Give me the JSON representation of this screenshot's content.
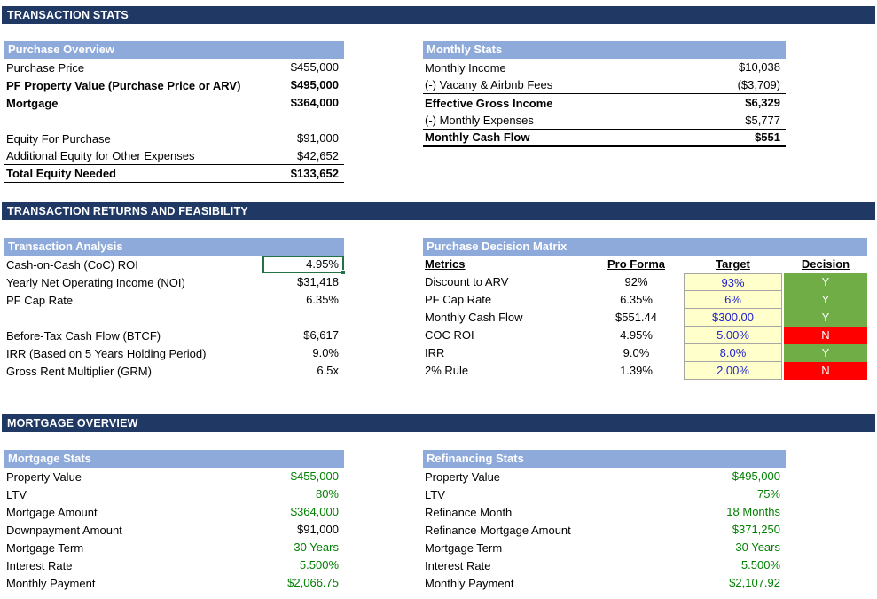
{
  "banners": {
    "stats": "TRANSACTION STATS",
    "returns": "TRANSACTION RETURNS AND FEASIBILITY",
    "mortgage": "MORTGAGE OVERVIEW"
  },
  "colors": {
    "banner_bg": "#1F3864",
    "band_bg": "#8EAADB",
    "target_cell_bg": "#FFFFCC",
    "target_text": "#2222CC",
    "decision_yes": "#70AD47",
    "decision_no": "#FF0000",
    "linked_value_text": "#008000",
    "active_cell_border": "#217346"
  },
  "purchase_overview": {
    "title": "Purchase Overview",
    "rows": [
      {
        "label": "Purchase Price",
        "value": "$455,000"
      },
      {
        "label": "PF Property Value (Purchase Price or ARV)",
        "value": "$495,000",
        "bold": true
      },
      {
        "label": "Mortgage",
        "value": "$364,000",
        "bold": true
      },
      {
        "blank": true
      },
      {
        "label": "Equity For Purchase",
        "value": "$91,000"
      },
      {
        "label": "Additional Equity for Other Expenses",
        "value": "$42,652",
        "border": "single"
      },
      {
        "label": "Total Equity Needed",
        "value": "$133,652",
        "bold": true,
        "border": "single"
      }
    ]
  },
  "monthly_stats": {
    "title": "Monthly Stats",
    "rows": [
      {
        "label": "Monthly Income",
        "value": "$10,038"
      },
      {
        "label": "(-) Vacany & Airbnb Fees",
        "value": "($3,709)",
        "border": "single"
      },
      {
        "label": "Effective Gross Income",
        "value": "$6,329",
        "bold": true
      },
      {
        "label": "(-) Monthly Expenses",
        "value": "$5,777",
        "border": "single"
      },
      {
        "label": "Monthly Cash Flow",
        "value": "$551",
        "bold": true,
        "border": "double"
      }
    ]
  },
  "transaction_analysis": {
    "title": "Transaction Analysis",
    "rows": [
      {
        "label": "Cash-on-Cash (CoC) ROI",
        "value": "4.95%",
        "active": true
      },
      {
        "label": "Yearly Net Operating Income (NOI)",
        "value": "$31,418"
      },
      {
        "label": "PF Cap Rate",
        "value": "6.35%"
      },
      {
        "blank": true
      },
      {
        "label": "Before-Tax Cash Flow (BTCF)",
        "value": "$6,617"
      },
      {
        "label": "IRR (Based on 5 Years Holding Period)",
        "value": "9.0%"
      },
      {
        "label": "Gross Rent Multiplier (GRM)",
        "value": "6.5x"
      }
    ]
  },
  "decision_matrix": {
    "title": "Purchase Decision Matrix",
    "headers": {
      "metrics": "Metrics",
      "pro_forma": "Pro Forma",
      "target": "Target",
      "decision": "Decision"
    },
    "rows": [
      {
        "metric": "Discount to ARV",
        "pro_forma": "92%",
        "target": "93%",
        "decision": "Y",
        "status": "green"
      },
      {
        "metric": "PF Cap Rate",
        "pro_forma": "6.35%",
        "target": "6%",
        "decision": "Y",
        "status": "green"
      },
      {
        "metric": "Monthly Cash Flow",
        "pro_forma": "$551.44",
        "target": "$300.00",
        "decision": "Y",
        "status": "green"
      },
      {
        "metric": "COC ROI",
        "pro_forma": "4.95%",
        "target": "5.00%",
        "decision": "N",
        "status": "red"
      },
      {
        "metric": "IRR",
        "pro_forma": "9.0%",
        "target": "8.0%",
        "decision": "Y",
        "status": "green"
      },
      {
        "metric": "2% Rule",
        "pro_forma": "1.39%",
        "target": "2.00%",
        "decision": "N",
        "status": "red"
      }
    ]
  },
  "mortgage_stats": {
    "title": "Mortgage Stats",
    "rows": [
      {
        "label": "Property Value",
        "value": "$455,000",
        "value_color": "green"
      },
      {
        "label": "LTV",
        "value": "80%",
        "value_color": "green"
      },
      {
        "label": "Mortgage Amount",
        "value": "$364,000",
        "value_color": "green"
      },
      {
        "label": "Downpayment Amount",
        "value": "$91,000"
      },
      {
        "label": "Mortgage Term",
        "value": "30 Years",
        "value_color": "green"
      },
      {
        "label": "Interest Rate",
        "value": "5.500%",
        "value_color": "green"
      },
      {
        "label": "Monthly Payment",
        "value": "$2,066.75",
        "value_color": "green"
      }
    ]
  },
  "refinancing_stats": {
    "title": "Refinancing Stats",
    "rows": [
      {
        "label": "Property Value",
        "value": "$495,000",
        "value_color": "green"
      },
      {
        "label": "LTV",
        "value": "75%",
        "value_color": "green"
      },
      {
        "label": "Refinance Month",
        "value": "18 Months",
        "value_color": "green"
      },
      {
        "label": "Refinance Mortgage Amount",
        "value": "$371,250",
        "value_color": "green"
      },
      {
        "label": "Mortgage Term",
        "value": "30 Years",
        "value_color": "green"
      },
      {
        "label": "Interest Rate",
        "value": "5.500%",
        "value_color": "green"
      },
      {
        "label": "Monthly Payment",
        "value": "$2,107.92",
        "value_color": "green"
      }
    ]
  }
}
